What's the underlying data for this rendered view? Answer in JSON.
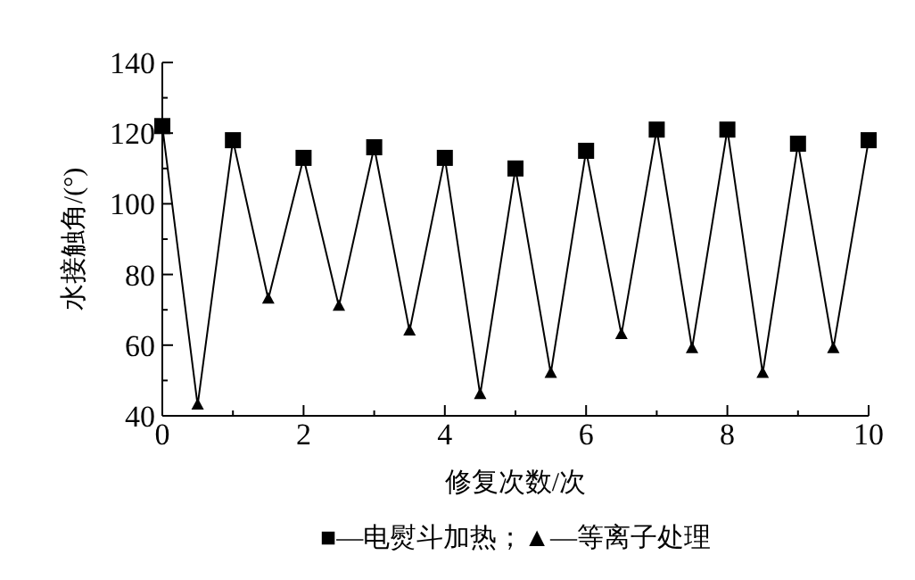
{
  "chart_data": {
    "type": "line",
    "xlabel": "修复次数/次",
    "ylabel": "水接触角/(°)",
    "xlim": [
      0,
      10
    ],
    "ylim": [
      40,
      140
    ],
    "xticks": [
      0,
      {
        "value": 1,
        "label": null
      },
      2,
      {
        "value": 3,
        "label": null
      },
      4,
      {
        "value": 5,
        "label": null
      },
      6,
      {
        "value": 7,
        "label": null
      },
      8,
      {
        "value": 9,
        "label": null
      },
      10
    ],
    "yticks": [
      40,
      {
        "value": 50,
        "label": null
      },
      60,
      {
        "value": 70,
        "label": null
      },
      80,
      {
        "value": 90,
        "label": null
      },
      100,
      {
        "value": 110,
        "label": null
      },
      120,
      {
        "value": 130,
        "label": null
      },
      140
    ],
    "grid": false,
    "annotations": [
      "■—电熨斗加热；▲—等离子处理"
    ],
    "series": [
      {
        "color": "#000000",
        "marker": "none",
        "x": [
          0,
          0.5,
          1,
          1.5,
          2,
          2.5,
          3,
          3.5,
          4,
          4.5,
          5,
          5.5,
          6,
          6.5,
          7,
          7.5,
          8,
          8.5,
          9,
          9.5,
          10
        ],
        "values": [
          122,
          43,
          118,
          73,
          113,
          71,
          116,
          64,
          113,
          46,
          110,
          52,
          115,
          63,
          121,
          59,
          121,
          52,
          117,
          59,
          118
        ]
      },
      {
        "type": "scatter",
        "color": "#000000",
        "marker": "square",
        "x": [
          0,
          1,
          2,
          3,
          4,
          5,
          6,
          7,
          8,
          9,
          10
        ],
        "values": [
          122,
          118,
          113,
          116,
          113,
          110,
          115,
          121,
          121,
          117,
          118
        ]
      },
      {
        "type": "scatter",
        "color": "#000000",
        "marker": "triangle",
        "x": [
          0.5,
          1.5,
          2.5,
          3.5,
          4.5,
          5.5,
          6.5,
          7.5,
          8.5,
          9.5
        ],
        "values": [
          43,
          73,
          71,
          64,
          46,
          52,
          63,
          59,
          52,
          59
        ]
      }
    ]
  }
}
